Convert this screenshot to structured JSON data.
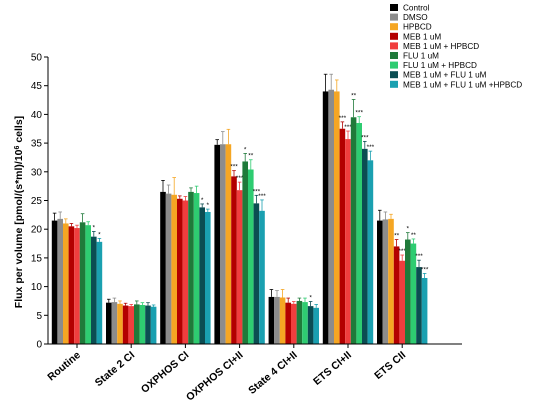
{
  "chart_data": {
    "type": "bar",
    "ylabel": "Flux per volume [pmol/(s*ml)/10⁶ cells]",
    "ylabel_main": "Flux per volume [pmol/(s*ml)/10",
    "ylabel_sup": "6",
    "ylabel_tail": " cells]",
    "ylim": [
      0,
      50
    ],
    "yticks": [
      "0",
      "5",
      "10",
      "15",
      "20",
      "25",
      "30",
      "35",
      "40",
      "45",
      "50"
    ],
    "legend_position": "top-right",
    "categories": [
      "Routine",
      "State 2 CI",
      "OXPHOS CI",
      "OXPHOS CI+II",
      "State 4 CI+II",
      "ETS CI+II",
      "ETS CII"
    ],
    "series": [
      {
        "name": "Control",
        "color": "#000000",
        "values": [
          21.5,
          7.2,
          26.5,
          34.7,
          8.2,
          44.0,
          21.5
        ],
        "errors": [
          1.3,
          0.6,
          2.0,
          0.9,
          1.3,
          3.0,
          1.8
        ],
        "stars": [
          "",
          "",
          "",
          "",
          "",
          "",
          ""
        ]
      },
      {
        "name": "DMSO",
        "color": "#8c8c8c",
        "values": [
          21.8,
          7.3,
          26.2,
          34.8,
          8.2,
          44.3,
          21.7
        ],
        "errors": [
          1.2,
          0.7,
          1.5,
          2.2,
          1.1,
          2.7,
          1.3
        ],
        "stars": [
          "",
          "",
          "",
          "",
          "",
          "",
          ""
        ]
      },
      {
        "name": "HPBCD",
        "color": "#f5a623",
        "values": [
          21.0,
          7.0,
          26.0,
          34.8,
          8.1,
          44.0,
          21.8
        ],
        "errors": [
          0.8,
          0.5,
          3.0,
          2.6,
          1.4,
          2.0,
          0.8
        ],
        "stars": [
          "",
          "",
          "",
          "",
          "",
          "",
          ""
        ]
      },
      {
        "name": "MEB 1 uM",
        "color": "#b30000",
        "values": [
          20.5,
          6.7,
          25.3,
          29.2,
          7.2,
          37.5,
          17.0
        ],
        "errors": [
          0.5,
          0.4,
          0.5,
          1.0,
          0.8,
          1.2,
          1.2
        ],
        "stars": [
          "",
          "",
          "",
          "***",
          "",
          "***",
          "**"
        ]
      },
      {
        "name": "MEB 1 uM + HPBCD",
        "color": "#f03e3e",
        "values": [
          20.2,
          6.6,
          25.0,
          26.8,
          7.0,
          35.7,
          14.5
        ],
        "errors": [
          0.5,
          0.3,
          0.7,
          1.4,
          0.4,
          1.4,
          1.0
        ],
        "stars": [
          "",
          "",
          "",
          "***",
          "",
          "***",
          "***"
        ]
      },
      {
        "name": "FLU 1 uM",
        "color": "#1f7a3a",
        "values": [
          21.2,
          6.9,
          26.5,
          31.8,
          7.5,
          39.5,
          18.2
        ],
        "errors": [
          1.5,
          0.6,
          0.7,
          1.4,
          0.5,
          3.1,
          1.2
        ],
        "stars": [
          "",
          "",
          "",
          "*",
          "",
          "**",
          "*"
        ]
      },
      {
        "name": "FLU 1 uM + HPBCD",
        "color": "#2ecc71",
        "values": [
          20.7,
          6.8,
          26.3,
          30.4,
          7.3,
          38.5,
          17.5
        ],
        "errors": [
          0.6,
          0.4,
          1.2,
          1.7,
          0.7,
          1.1,
          0.8
        ],
        "stars": [
          "",
          "",
          "",
          "**",
          "",
          "***",
          "**"
        ]
      },
      {
        "name": "MEB 1 uM + FLU 1 uM",
        "color": "#0b4d52",
        "values": [
          18.7,
          6.7,
          23.8,
          24.5,
          6.6,
          34.0,
          13.4
        ],
        "errors": [
          0.9,
          0.5,
          0.6,
          1.4,
          0.8,
          1.3,
          1.2
        ],
        "stars": [
          "*",
          "",
          "*",
          "***",
          "*",
          "***",
          "***"
        ]
      },
      {
        "name": "MEB 1 uM + FLU 1 uM +HPBCD",
        "color": "#1aa0b0",
        "values": [
          17.8,
          6.5,
          23.0,
          23.2,
          6.3,
          32.0,
          11.5
        ],
        "errors": [
          0.6,
          0.3,
          0.5,
          1.9,
          0.6,
          1.6,
          0.8
        ],
        "stars": [
          "*",
          "",
          "*",
          "***",
          "",
          "***",
          "***"
        ]
      }
    ]
  }
}
